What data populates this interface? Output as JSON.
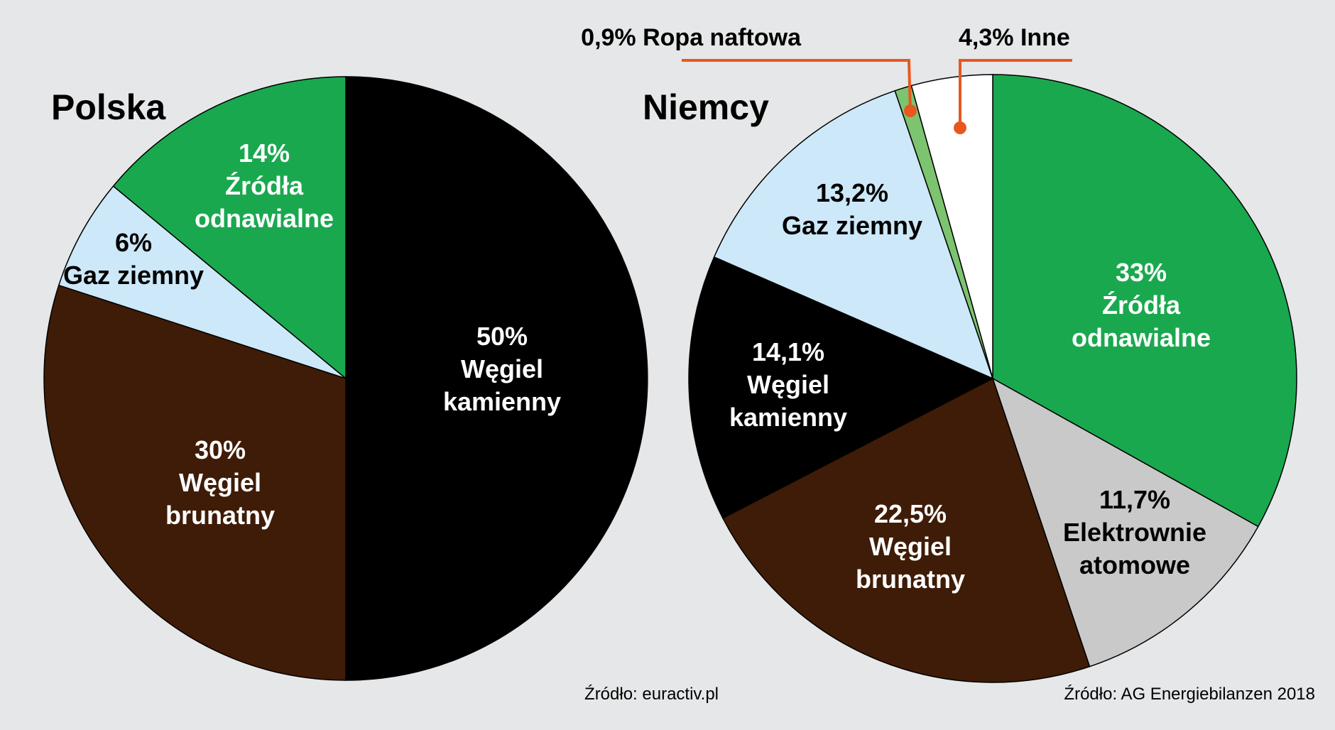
{
  "colors": {
    "background": "#e6e7e8",
    "green": "#1aa84f",
    "light_blue": "#cde8f8",
    "brown": "#3f1c07",
    "black": "#000000",
    "grey": "#c9c9c9",
    "light_green": "#7cc46f",
    "white": "#ffffff",
    "leader_orange": "#e8571f"
  },
  "chart_data": [
    {
      "type": "pie",
      "title": "Polska",
      "source": "Źródło: euractiv.pl",
      "slices": [
        {
          "value": 50,
          "label": [
            "50%",
            "Węgiel",
            "kamienny"
          ],
          "color": "#000000",
          "text_color": "#ffffff"
        },
        {
          "value": 30,
          "label": [
            "30%",
            "Węgiel",
            "brunatny"
          ],
          "color": "#3f1c07",
          "text_color": "#ffffff"
        },
        {
          "value": 6,
          "label": [
            "6%",
            "Gaz ziemny"
          ],
          "color": "#cde8f8",
          "text_color": "#000000"
        },
        {
          "value": 14,
          "label": [
            "14%",
            "Źródła",
            "odnawialne"
          ],
          "color": "#1aa84f",
          "text_color": "#ffffff"
        }
      ]
    },
    {
      "type": "pie",
      "title": "Niemcy",
      "source": "Źródło: AG Energiebilanzen 2018",
      "slices": [
        {
          "value": 33,
          "label": [
            "33%",
            "Źródła",
            "odnawialne"
          ],
          "color": "#1aa84f",
          "text_color": "#ffffff"
        },
        {
          "value": 11.7,
          "label": [
            "11,7%",
            "Elektrownie",
            "atomowe"
          ],
          "color": "#c9c9c9",
          "text_color": "#000000"
        },
        {
          "value": 22.5,
          "label": [
            "22,5%",
            "Węgiel",
            "brunatny"
          ],
          "color": "#3f1c07",
          "text_color": "#ffffff"
        },
        {
          "value": 14.1,
          "label": [
            "14,1%",
            "Węgiel",
            "kamienny"
          ],
          "color": "#000000",
          "text_color": "#ffffff"
        },
        {
          "value": 13.2,
          "label": [
            "13,2%",
            "Gaz ziemny"
          ],
          "color": "#cde8f8",
          "text_color": "#000000"
        },
        {
          "value": 0.9,
          "label": [
            "0,9% Ropa naftowa"
          ],
          "color": "#7cc46f",
          "text_color": "#000000",
          "external": true
        },
        {
          "value": 4.3,
          "label": [
            "4,3% Inne"
          ],
          "color": "#ffffff",
          "text_color": "#000000",
          "external": true
        }
      ]
    }
  ]
}
